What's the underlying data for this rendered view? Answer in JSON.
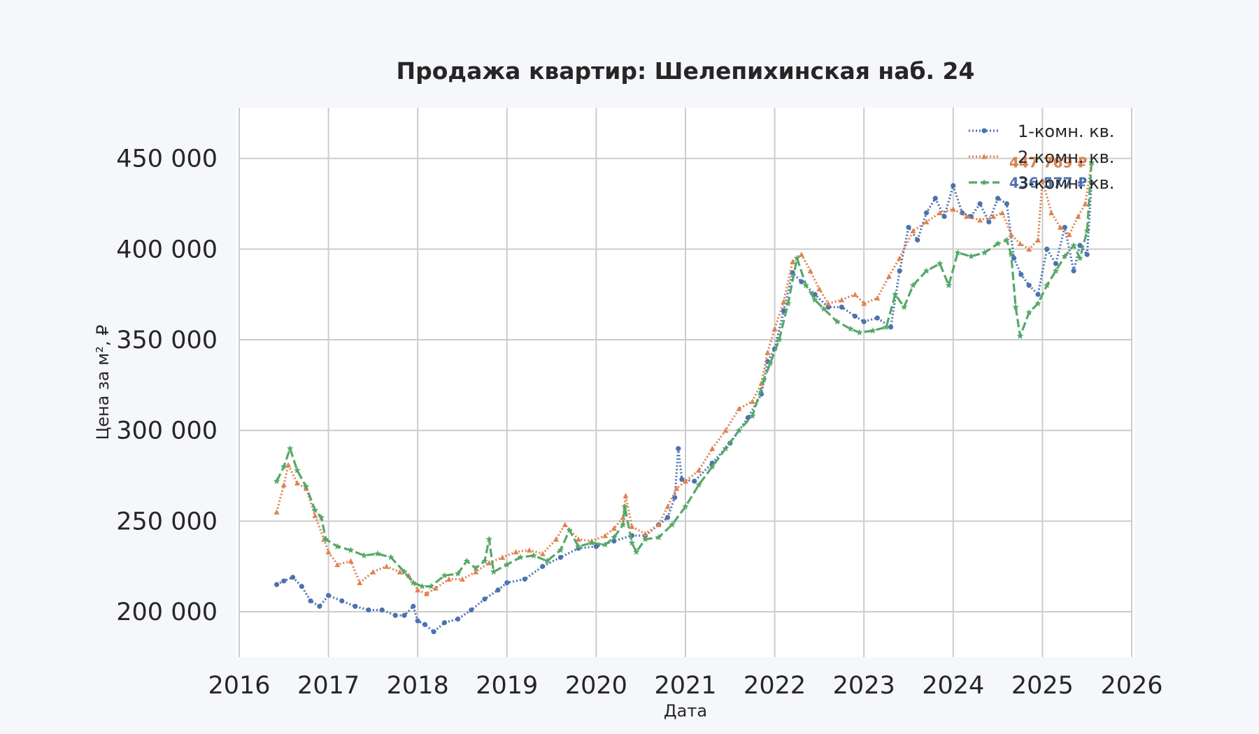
{
  "chart_data": {
    "type": "line",
    "title": "Продажа квартир: Шелепихинская наб. 24",
    "xlabel": "Дата",
    "ylabel": "Цена за м², ₽",
    "xlim": [
      2016.0,
      2026.0
    ],
    "ylim": [
      175000,
      478000
    ],
    "x_ticks": [
      "2016",
      "2017",
      "2018",
      "2019",
      "2020",
      "2021",
      "2022",
      "2023",
      "2024",
      "2025",
      "2026"
    ],
    "y_ticks": [
      {
        "value": 200000,
        "label": "200 000"
      },
      {
        "value": 250000,
        "label": "250 000"
      },
      {
        "value": 300000,
        "label": "300 000"
      },
      {
        "value": 350000,
        "label": "350 000"
      },
      {
        "value": 400000,
        "label": "400 000"
      },
      {
        "value": 450000,
        "label": "450 000"
      }
    ],
    "grid": true,
    "legend_position": "top-right",
    "series": [
      {
        "name": "1-комн. кв.",
        "color": "#4c72b0",
        "dash": "dotted",
        "marker": "circle",
        "end_label": "436 577 ₽",
        "points": [
          [
            2016.42,
            215000
          ],
          [
            2016.5,
            217000
          ],
          [
            2016.6,
            219000
          ],
          [
            2016.7,
            214000
          ],
          [
            2016.8,
            206000
          ],
          [
            2016.9,
            203000
          ],
          [
            2017.0,
            209000
          ],
          [
            2017.15,
            206000
          ],
          [
            2017.3,
            203000
          ],
          [
            2017.45,
            201000
          ],
          [
            2017.6,
            201000
          ],
          [
            2017.75,
            198000
          ],
          [
            2017.85,
            198000
          ],
          [
            2017.95,
            203000
          ],
          [
            2018.0,
            195000
          ],
          [
            2018.08,
            193000
          ],
          [
            2018.18,
            189000
          ],
          [
            2018.3,
            194000
          ],
          [
            2018.45,
            196000
          ],
          [
            2018.6,
            201000
          ],
          [
            2018.75,
            207000
          ],
          [
            2018.9,
            212000
          ],
          [
            2019.0,
            216000
          ],
          [
            2019.2,
            218000
          ],
          [
            2019.4,
            225000
          ],
          [
            2019.6,
            230000
          ],
          [
            2019.8,
            235000
          ],
          [
            2020.0,
            236000
          ],
          [
            2020.2,
            239000
          ],
          [
            2020.4,
            242000
          ],
          [
            2020.55,
            242000
          ],
          [
            2020.7,
            248000
          ],
          [
            2020.8,
            252000
          ],
          [
            2020.88,
            263000
          ],
          [
            2020.92,
            290000
          ],
          [
            2020.96,
            273000
          ],
          [
            2021.1,
            272000
          ],
          [
            2021.3,
            282000
          ],
          [
            2021.5,
            293000
          ],
          [
            2021.7,
            307000
          ],
          [
            2021.85,
            320000
          ],
          [
            2021.92,
            338000
          ],
          [
            2022.0,
            345000
          ],
          [
            2022.1,
            366000
          ],
          [
            2022.2,
            387000
          ],
          [
            2022.3,
            382000
          ],
          [
            2022.45,
            375000
          ],
          [
            2022.6,
            368000
          ],
          [
            2022.75,
            368000
          ],
          [
            2022.9,
            363000
          ],
          [
            2023.0,
            360000
          ],
          [
            2023.15,
            362000
          ],
          [
            2023.3,
            357000
          ],
          [
            2023.4,
            388000
          ],
          [
            2023.5,
            412000
          ],
          [
            2023.6,
            405000
          ],
          [
            2023.7,
            420000
          ],
          [
            2023.8,
            428000
          ],
          [
            2023.9,
            418000
          ],
          [
            2024.0,
            435000
          ],
          [
            2024.1,
            420000
          ],
          [
            2024.2,
            418000
          ],
          [
            2024.3,
            425000
          ],
          [
            2024.4,
            415000
          ],
          [
            2024.5,
            428000
          ],
          [
            2024.6,
            425000
          ],
          [
            2024.68,
            395000
          ],
          [
            2024.76,
            386000
          ],
          [
            2024.85,
            380000
          ],
          [
            2024.95,
            375000
          ],
          [
            2025.05,
            400000
          ],
          [
            2025.15,
            392000
          ],
          [
            2025.25,
            412000
          ],
          [
            2025.35,
            388000
          ],
          [
            2025.42,
            402000
          ],
          [
            2025.5,
            397000
          ],
          [
            2025.55,
            436577
          ]
        ]
      },
      {
        "name": "2-комн. кв.",
        "color": "#dd8452",
        "dash": "dotted",
        "marker": "triangle",
        "end_label": "447 769 ₽",
        "points": [
          [
            2016.42,
            255000
          ],
          [
            2016.5,
            270000
          ],
          [
            2016.55,
            281000
          ],
          [
            2016.65,
            271000
          ],
          [
            2016.75,
            268000
          ],
          [
            2016.85,
            253000
          ],
          [
            2016.95,
            240000
          ],
          [
            2017.0,
            233000
          ],
          [
            2017.1,
            226000
          ],
          [
            2017.25,
            228000
          ],
          [
            2017.35,
            216000
          ],
          [
            2017.5,
            222000
          ],
          [
            2017.65,
            225000
          ],
          [
            2017.8,
            222000
          ],
          [
            2017.9,
            220000
          ],
          [
            2018.0,
            212000
          ],
          [
            2018.1,
            210000
          ],
          [
            2018.2,
            213000
          ],
          [
            2018.35,
            218000
          ],
          [
            2018.5,
            218000
          ],
          [
            2018.65,
            222000
          ],
          [
            2018.8,
            227000
          ],
          [
            2018.95,
            230000
          ],
          [
            2019.1,
            233000
          ],
          [
            2019.25,
            234000
          ],
          [
            2019.4,
            232000
          ],
          [
            2019.55,
            240000
          ],
          [
            2019.65,
            248000
          ],
          [
            2019.8,
            240000
          ],
          [
            2019.95,
            239000
          ],
          [
            2020.1,
            242000
          ],
          [
            2020.2,
            246000
          ],
          [
            2020.3,
            252000
          ],
          [
            2020.33,
            264000
          ],
          [
            2020.4,
            247000
          ],
          [
            2020.55,
            243000
          ],
          [
            2020.7,
            248000
          ],
          [
            2020.8,
            258000
          ],
          [
            2020.9,
            268000
          ],
          [
            2021.0,
            272000
          ],
          [
            2021.15,
            278000
          ],
          [
            2021.3,
            290000
          ],
          [
            2021.45,
            300000
          ],
          [
            2021.6,
            312000
          ],
          [
            2021.75,
            316000
          ],
          [
            2021.85,
            326000
          ],
          [
            2021.92,
            343000
          ],
          [
            2022.0,
            356000
          ],
          [
            2022.1,
            371000
          ],
          [
            2022.2,
            393000
          ],
          [
            2022.3,
            397000
          ],
          [
            2022.4,
            388000
          ],
          [
            2022.5,
            378000
          ],
          [
            2022.6,
            370000
          ],
          [
            2022.75,
            372000
          ],
          [
            2022.9,
            375000
          ],
          [
            2023.0,
            370000
          ],
          [
            2023.15,
            373000
          ],
          [
            2023.28,
            385000
          ],
          [
            2023.4,
            395000
          ],
          [
            2023.55,
            410000
          ],
          [
            2023.7,
            415000
          ],
          [
            2023.85,
            420000
          ],
          [
            2024.0,
            422000
          ],
          [
            2024.15,
            418000
          ],
          [
            2024.3,
            416000
          ],
          [
            2024.45,
            418000
          ],
          [
            2024.55,
            420000
          ],
          [
            2024.65,
            408000
          ],
          [
            2024.75,
            403000
          ],
          [
            2024.85,
            400000
          ],
          [
            2024.95,
            405000
          ],
          [
            2025.0,
            438000
          ],
          [
            2025.1,
            420000
          ],
          [
            2025.2,
            412000
          ],
          [
            2025.3,
            408000
          ],
          [
            2025.4,
            418000
          ],
          [
            2025.48,
            425000
          ],
          [
            2025.55,
            447769
          ]
        ]
      },
      {
        "name": "3-комн. кв.",
        "color": "#55a868",
        "dash": "dashed",
        "marker": "star",
        "end_label": "447 769 ₽",
        "points": [
          [
            2016.42,
            272000
          ],
          [
            2016.5,
            280000
          ],
          [
            2016.57,
            290000
          ],
          [
            2016.65,
            278000
          ],
          [
            2016.75,
            269000
          ],
          [
            2016.85,
            256000
          ],
          [
            2016.92,
            252000
          ],
          [
            2016.97,
            240000
          ],
          [
            2017.1,
            236000
          ],
          [
            2017.25,
            234000
          ],
          [
            2017.4,
            231000
          ],
          [
            2017.55,
            232000
          ],
          [
            2017.7,
            230000
          ],
          [
            2017.85,
            222000
          ],
          [
            2017.95,
            216000
          ],
          [
            2018.05,
            214000
          ],
          [
            2018.15,
            214000
          ],
          [
            2018.3,
            220000
          ],
          [
            2018.45,
            221000
          ],
          [
            2018.55,
            228000
          ],
          [
            2018.65,
            224000
          ],
          [
            2018.75,
            228000
          ],
          [
            2018.8,
            240000
          ],
          [
            2018.85,
            222000
          ],
          [
            2019.0,
            226000
          ],
          [
            2019.15,
            230000
          ],
          [
            2019.3,
            231000
          ],
          [
            2019.45,
            228000
          ],
          [
            2019.6,
            234000
          ],
          [
            2019.7,
            245000
          ],
          [
            2019.8,
            236000
          ],
          [
            2019.95,
            238000
          ],
          [
            2020.1,
            237000
          ],
          [
            2020.2,
            241000
          ],
          [
            2020.3,
            248000
          ],
          [
            2020.32,
            258000
          ],
          [
            2020.4,
            238000
          ],
          [
            2020.45,
            233000
          ],
          [
            2020.55,
            240000
          ],
          [
            2020.7,
            241000
          ],
          [
            2020.85,
            248000
          ],
          [
            2021.0,
            258000
          ],
          [
            2021.15,
            270000
          ],
          [
            2021.3,
            280000
          ],
          [
            2021.45,
            290000
          ],
          [
            2021.6,
            300000
          ],
          [
            2021.75,
            308000
          ],
          [
            2021.88,
            328000
          ],
          [
            2021.95,
            337000
          ],
          [
            2022.05,
            350000
          ],
          [
            2022.15,
            370000
          ],
          [
            2022.25,
            395000
          ],
          [
            2022.35,
            380000
          ],
          [
            2022.45,
            372000
          ],
          [
            2022.55,
            367000
          ],
          [
            2022.7,
            360000
          ],
          [
            2022.85,
            356000
          ],
          [
            2022.95,
            354000
          ],
          [
            2023.1,
            355000
          ],
          [
            2023.25,
            357000
          ],
          [
            2023.35,
            375000
          ],
          [
            2023.45,
            368000
          ],
          [
            2023.55,
            380000
          ],
          [
            2023.7,
            388000
          ],
          [
            2023.85,
            392000
          ],
          [
            2023.95,
            380000
          ],
          [
            2024.05,
            398000
          ],
          [
            2024.2,
            396000
          ],
          [
            2024.35,
            398000
          ],
          [
            2024.5,
            403000
          ],
          [
            2024.6,
            405000
          ],
          [
            2024.65,
            397000
          ],
          [
            2024.7,
            368000
          ],
          [
            2024.75,
            352000
          ],
          [
            2024.85,
            365000
          ],
          [
            2024.95,
            370000
          ],
          [
            2025.05,
            380000
          ],
          [
            2025.15,
            388000
          ],
          [
            2025.25,
            396000
          ],
          [
            2025.35,
            402000
          ],
          [
            2025.42,
            395000
          ],
          [
            2025.5,
            410000
          ],
          [
            2025.55,
            447769
          ]
        ]
      }
    ]
  }
}
